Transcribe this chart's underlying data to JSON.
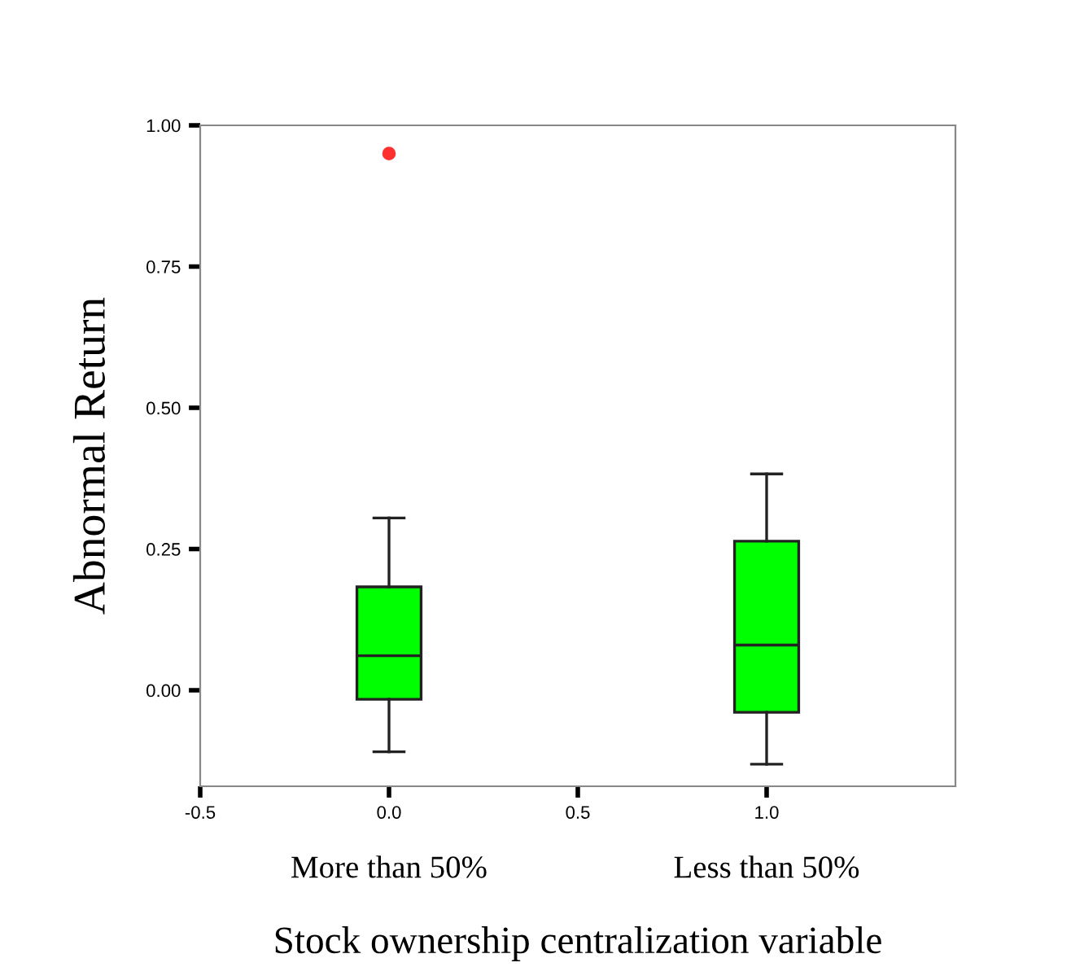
{
  "chart_data": {
    "type": "box",
    "x": [
      0.0,
      1.0
    ],
    "boxes": [
      {
        "low": -0.109,
        "q1": -0.016,
        "median": 0.061,
        "q3": 0.183,
        "high": 0.305,
        "outliers": [
          0.95
        ]
      },
      {
        "low": -0.131,
        "q1": -0.039,
        "median": 0.08,
        "q3": 0.264,
        "high": 0.383
      }
    ],
    "color": "#00ff00",
    "ylabel": "Abnormal Return",
    "xlabel": "Stock ownership centralization variable",
    "annotations": [
      "More than 50%",
      "Less than 50%"
    ],
    "xlim": [
      -0.5,
      1.5
    ],
    "xticks": [
      {
        "value": -0.5,
        "label": "-0.5"
      },
      {
        "value": 0.0,
        "label": "0.0"
      },
      {
        "value": 0.5,
        "label": "0.5"
      },
      {
        "value": 1.0,
        "label": "1.0"
      }
    ],
    "ylim": [
      -0.17,
      1.0
    ],
    "yticks": [
      {
        "value": 0.0,
        "label": "0.00"
      },
      {
        "value": 0.25,
        "label": "0.25"
      },
      {
        "value": 0.5,
        "label": "0.50"
      },
      {
        "value": 0.75,
        "label": "0.75"
      },
      {
        "value": 1.0,
        "label": "1.00"
      }
    ],
    "grid": false,
    "legend": false
  }
}
